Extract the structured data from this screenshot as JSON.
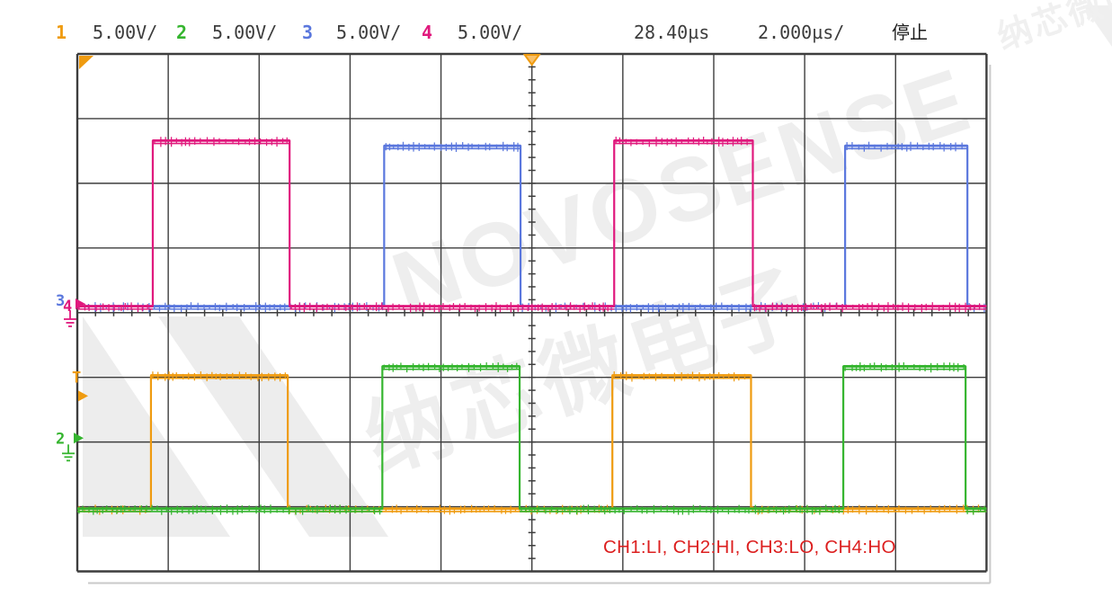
{
  "header": {
    "channels": [
      {
        "label": "1",
        "scale": "5.00V/",
        "color": "#ef9b10"
      },
      {
        "label": "2",
        "scale": "5.00V/",
        "color": "#35b52f"
      },
      {
        "label": "3",
        "scale": "5.00V/",
        "color": "#5a77dd"
      },
      {
        "label": "4",
        "scale": "5.00V/",
        "color": "#e0197d"
      }
    ],
    "trigger_delay": "28.40µs",
    "timebase": "2.000µs/",
    "acquisition_status": "停止"
  },
  "annotation": {
    "text": "CH1:LI, CH2:HI, CH3:LO, CH4:HO",
    "color": "#dc1f1f"
  },
  "watermark": {
    "brand": "NOVOSENSE",
    "chinese": "纳芯微电子"
  },
  "chart_data": {
    "type": "line",
    "subtype": "oscilloscope-square-waves",
    "title": "Half-bridge gate driver input/output waveforms",
    "grid": {
      "x_divisions": 10,
      "y_divisions": 8,
      "volts_per_div": 5.0,
      "time_per_div_us": 2.0,
      "grid_on": true
    },
    "time_window_us": 20,
    "trigger": {
      "source_channel": 1,
      "marker": "T",
      "position_div_from_left": 5,
      "delay_readout": "28.40µs",
      "status": "停止"
    },
    "series": [
      {
        "name": "CH1",
        "signal": "LI",
        "color": "#ef9b10",
        "baseline_div_from_top": 7.03,
        "low_volts": 0,
        "high_volts": 10.3,
        "pulses_us": [
          [
            1.62,
            4.63
          ],
          [
            11.77,
            14.82
          ]
        ]
      },
      {
        "name": "CH2",
        "signal": "HI",
        "color": "#35b52f",
        "baseline_div_from_top": 7.03,
        "low_volts": 0,
        "high_volts": 11.0,
        "pulses_us": [
          [
            6.71,
            9.73
          ],
          [
            16.85,
            19.54
          ]
        ]
      },
      {
        "name": "CH3",
        "signal": "LO",
        "color": "#5a77dd",
        "baseline_div_from_top": 3.9,
        "low_volts": 0,
        "high_volts": 12.4,
        "pulses_us": [
          [
            6.75,
            9.75
          ],
          [
            16.89,
            19.58
          ]
        ]
      },
      {
        "name": "CH4",
        "signal": "HO",
        "color": "#e0197d",
        "baseline_div_from_top": 3.9,
        "low_volts": 0,
        "high_volts": 12.8,
        "pulses_us": [
          [
            1.66,
            4.67
          ],
          [
            11.81,
            14.86
          ]
        ]
      }
    ],
    "draw_order": [
      "CH3",
      "CH4",
      "CH1",
      "CH2"
    ],
    "ground_markers": [
      {
        "label": "3",
        "color": "#5a77dd",
        "y_div_from_top": 3.81,
        "type": "channel-ground"
      },
      {
        "label": "4",
        "color": "#e0197d",
        "y_div_from_top": 3.85,
        "type": "channel-ground"
      },
      {
        "label": "T",
        "color": "#ef9b10",
        "y_div_from_top": 5.19,
        "type": "trigger-level"
      },
      {
        "label": "2",
        "color": "#35b52f",
        "y_div_from_top": 5.94,
        "type": "channel-ground"
      }
    ],
    "legend_position": "none",
    "background": "#ffffff"
  }
}
